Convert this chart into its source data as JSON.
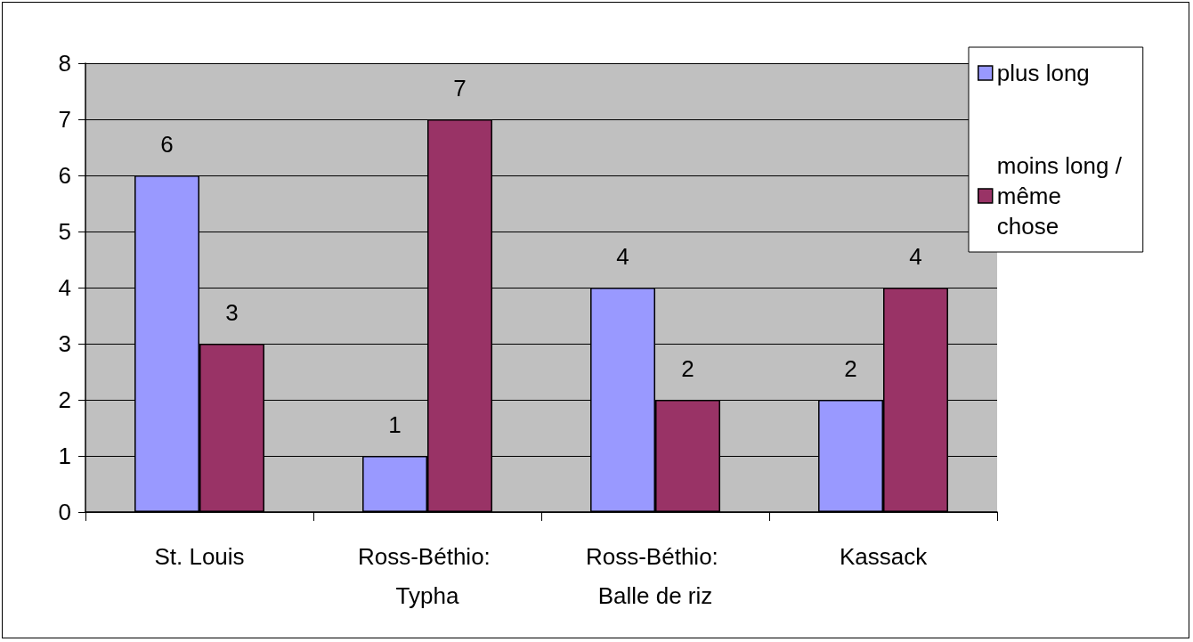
{
  "chart_data": {
    "type": "bar",
    "categories": [
      "St. Louis",
      "Ross-Béthio: Typha",
      "Ross-Béthio: Balle de riz",
      "Kassack"
    ],
    "series": [
      {
        "name": "plus long",
        "color": "#9999ff",
        "values": [
          6,
          1,
          4,
          2
        ]
      },
      {
        "name": "moins long /même chose",
        "color": "#993366",
        "values": [
          3,
          7,
          2,
          4
        ]
      }
    ],
    "ylim": [
      0,
      8
    ],
    "yticks": [
      0,
      1,
      2,
      3,
      4,
      5,
      6,
      7,
      8
    ],
    "grid": "y",
    "legend": "top right",
    "data_labels": true
  }
}
